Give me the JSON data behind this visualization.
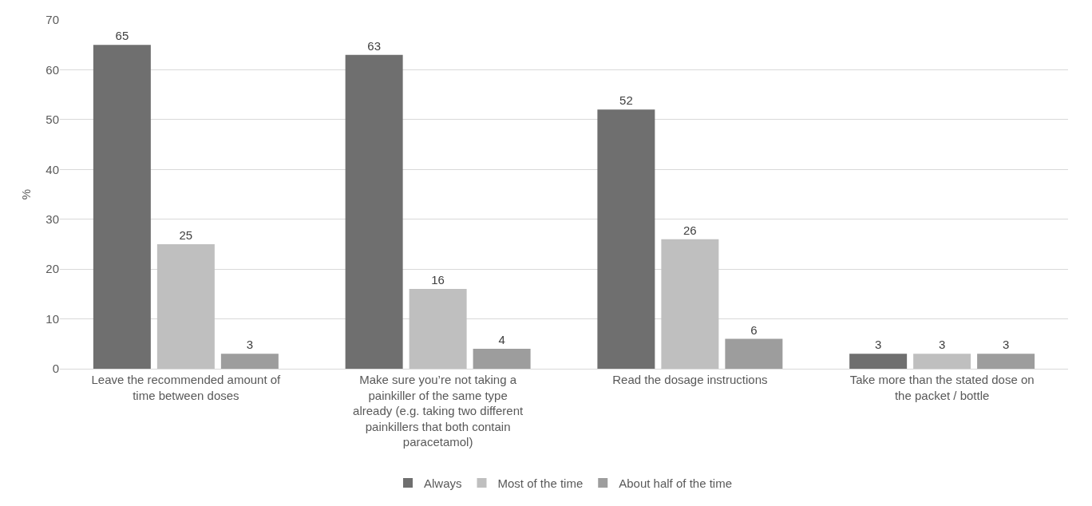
{
  "chart_data": {
    "type": "bar",
    "ylabel": "%",
    "categories": [
      "Leave the recommended amount of time between doses",
      "Make sure you’re not taking a painkiller of the same type already (e.g. taking two different painkillers that both contain paracetamol)",
      "Read the dosage instructions",
      "Take more than the stated dose on the packet / bottle"
    ],
    "series": [
      {
        "name": "Always",
        "color": "#6f6f6f",
        "values": [
          65,
          63,
          52,
          3
        ]
      },
      {
        "name": "Most of the time",
        "color": "#bfbfbf",
        "values": [
          25,
          16,
          26,
          3
        ]
      },
      {
        "name": "About half of the time",
        "color": "#9d9d9d",
        "values": [
          3,
          4,
          6,
          3
        ]
      }
    ],
    "ylim": [
      0,
      70
    ],
    "yticks": [
      0,
      10,
      20,
      30,
      40,
      50,
      60,
      70
    ],
    "grid": "y",
    "legend": "bottom",
    "data_labels": true
  }
}
